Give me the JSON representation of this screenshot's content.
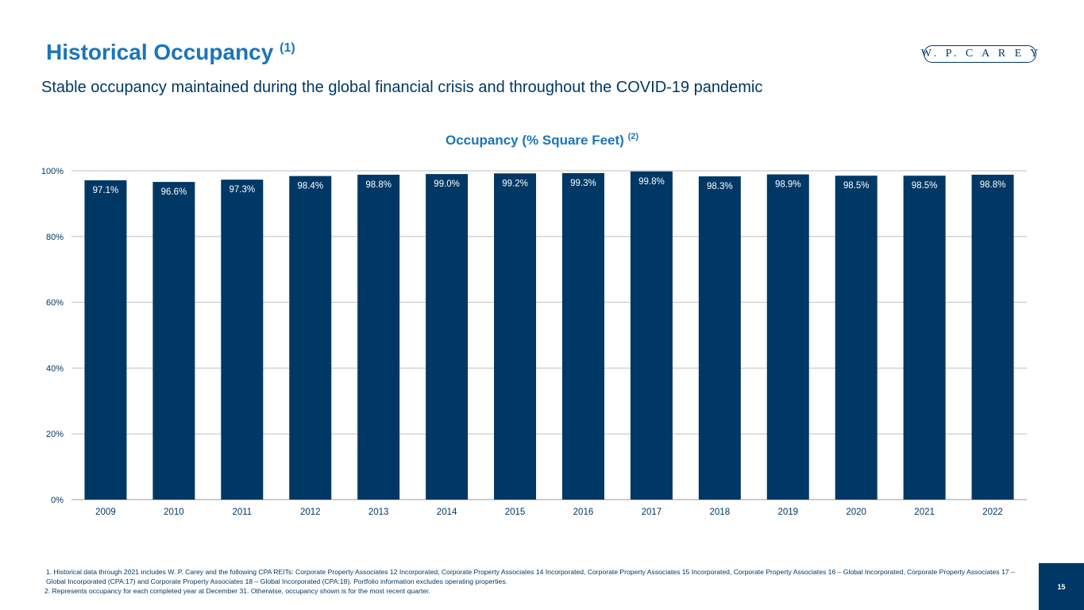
{
  "header": {
    "title": "Historical Occupancy",
    "title_note": "(1)",
    "subtitle": "Stable occupancy maintained during the global financial crisis and throughout the COVID-19 pandemic",
    "logo_text": "W. P. C A R E Y"
  },
  "chart_data": {
    "type": "bar",
    "title": "Occupancy (% Square Feet)",
    "title_note": "(2)",
    "categories": [
      "2009",
      "2010",
      "2011",
      "2012",
      "2013",
      "2014",
      "2015",
      "2016",
      "2017",
      "2018",
      "2019",
      "2020",
      "2021",
      "2022"
    ],
    "values": [
      97.1,
      96.6,
      97.3,
      98.4,
      98.8,
      99.0,
      99.2,
      99.3,
      99.8,
      98.3,
      98.9,
      98.5,
      98.5,
      98.8
    ],
    "data_labels": [
      "97.1%",
      "96.6%",
      "97.3%",
      "98.4%",
      "98.8%",
      "99.0%",
      "99.2%",
      "99.3%",
      "99.8%",
      "98.3%",
      "98.9%",
      "98.5%",
      "98.5%",
      "98.8%"
    ],
    "yticks": [
      "0%",
      "20%",
      "40%",
      "60%",
      "80%",
      "100%"
    ],
    "ylim": [
      0,
      100
    ],
    "grid": true,
    "bar_color": "#003865",
    "label_color": "#ffffff",
    "grid_color": "#bfbfbf"
  },
  "footnotes": {
    "note1": "1.  Historical data through 2021 includes W. P. Carey and the following CPA REITs: Corporate Property Associates 12 Incorporated, Corporate Property Associates 14 Incorporated, Corporate Property Associates 15 Incorporated, Corporate Property Associates 16 – Global Incorporated, Corporate Property Associates 17 – Global Incorporated (CPA:17) and Corporate Property Associates 18 – Global Incorporated (CPA:18). Portfolio information excludes operating properties.",
    "note2": "2. Represents occupancy for each completed year at December 31. Otherwise, occupancy shown is for the most recent quarter."
  },
  "page_number": "15",
  "colors": {
    "accent": "#1a75bc",
    "navy": "#003865"
  }
}
